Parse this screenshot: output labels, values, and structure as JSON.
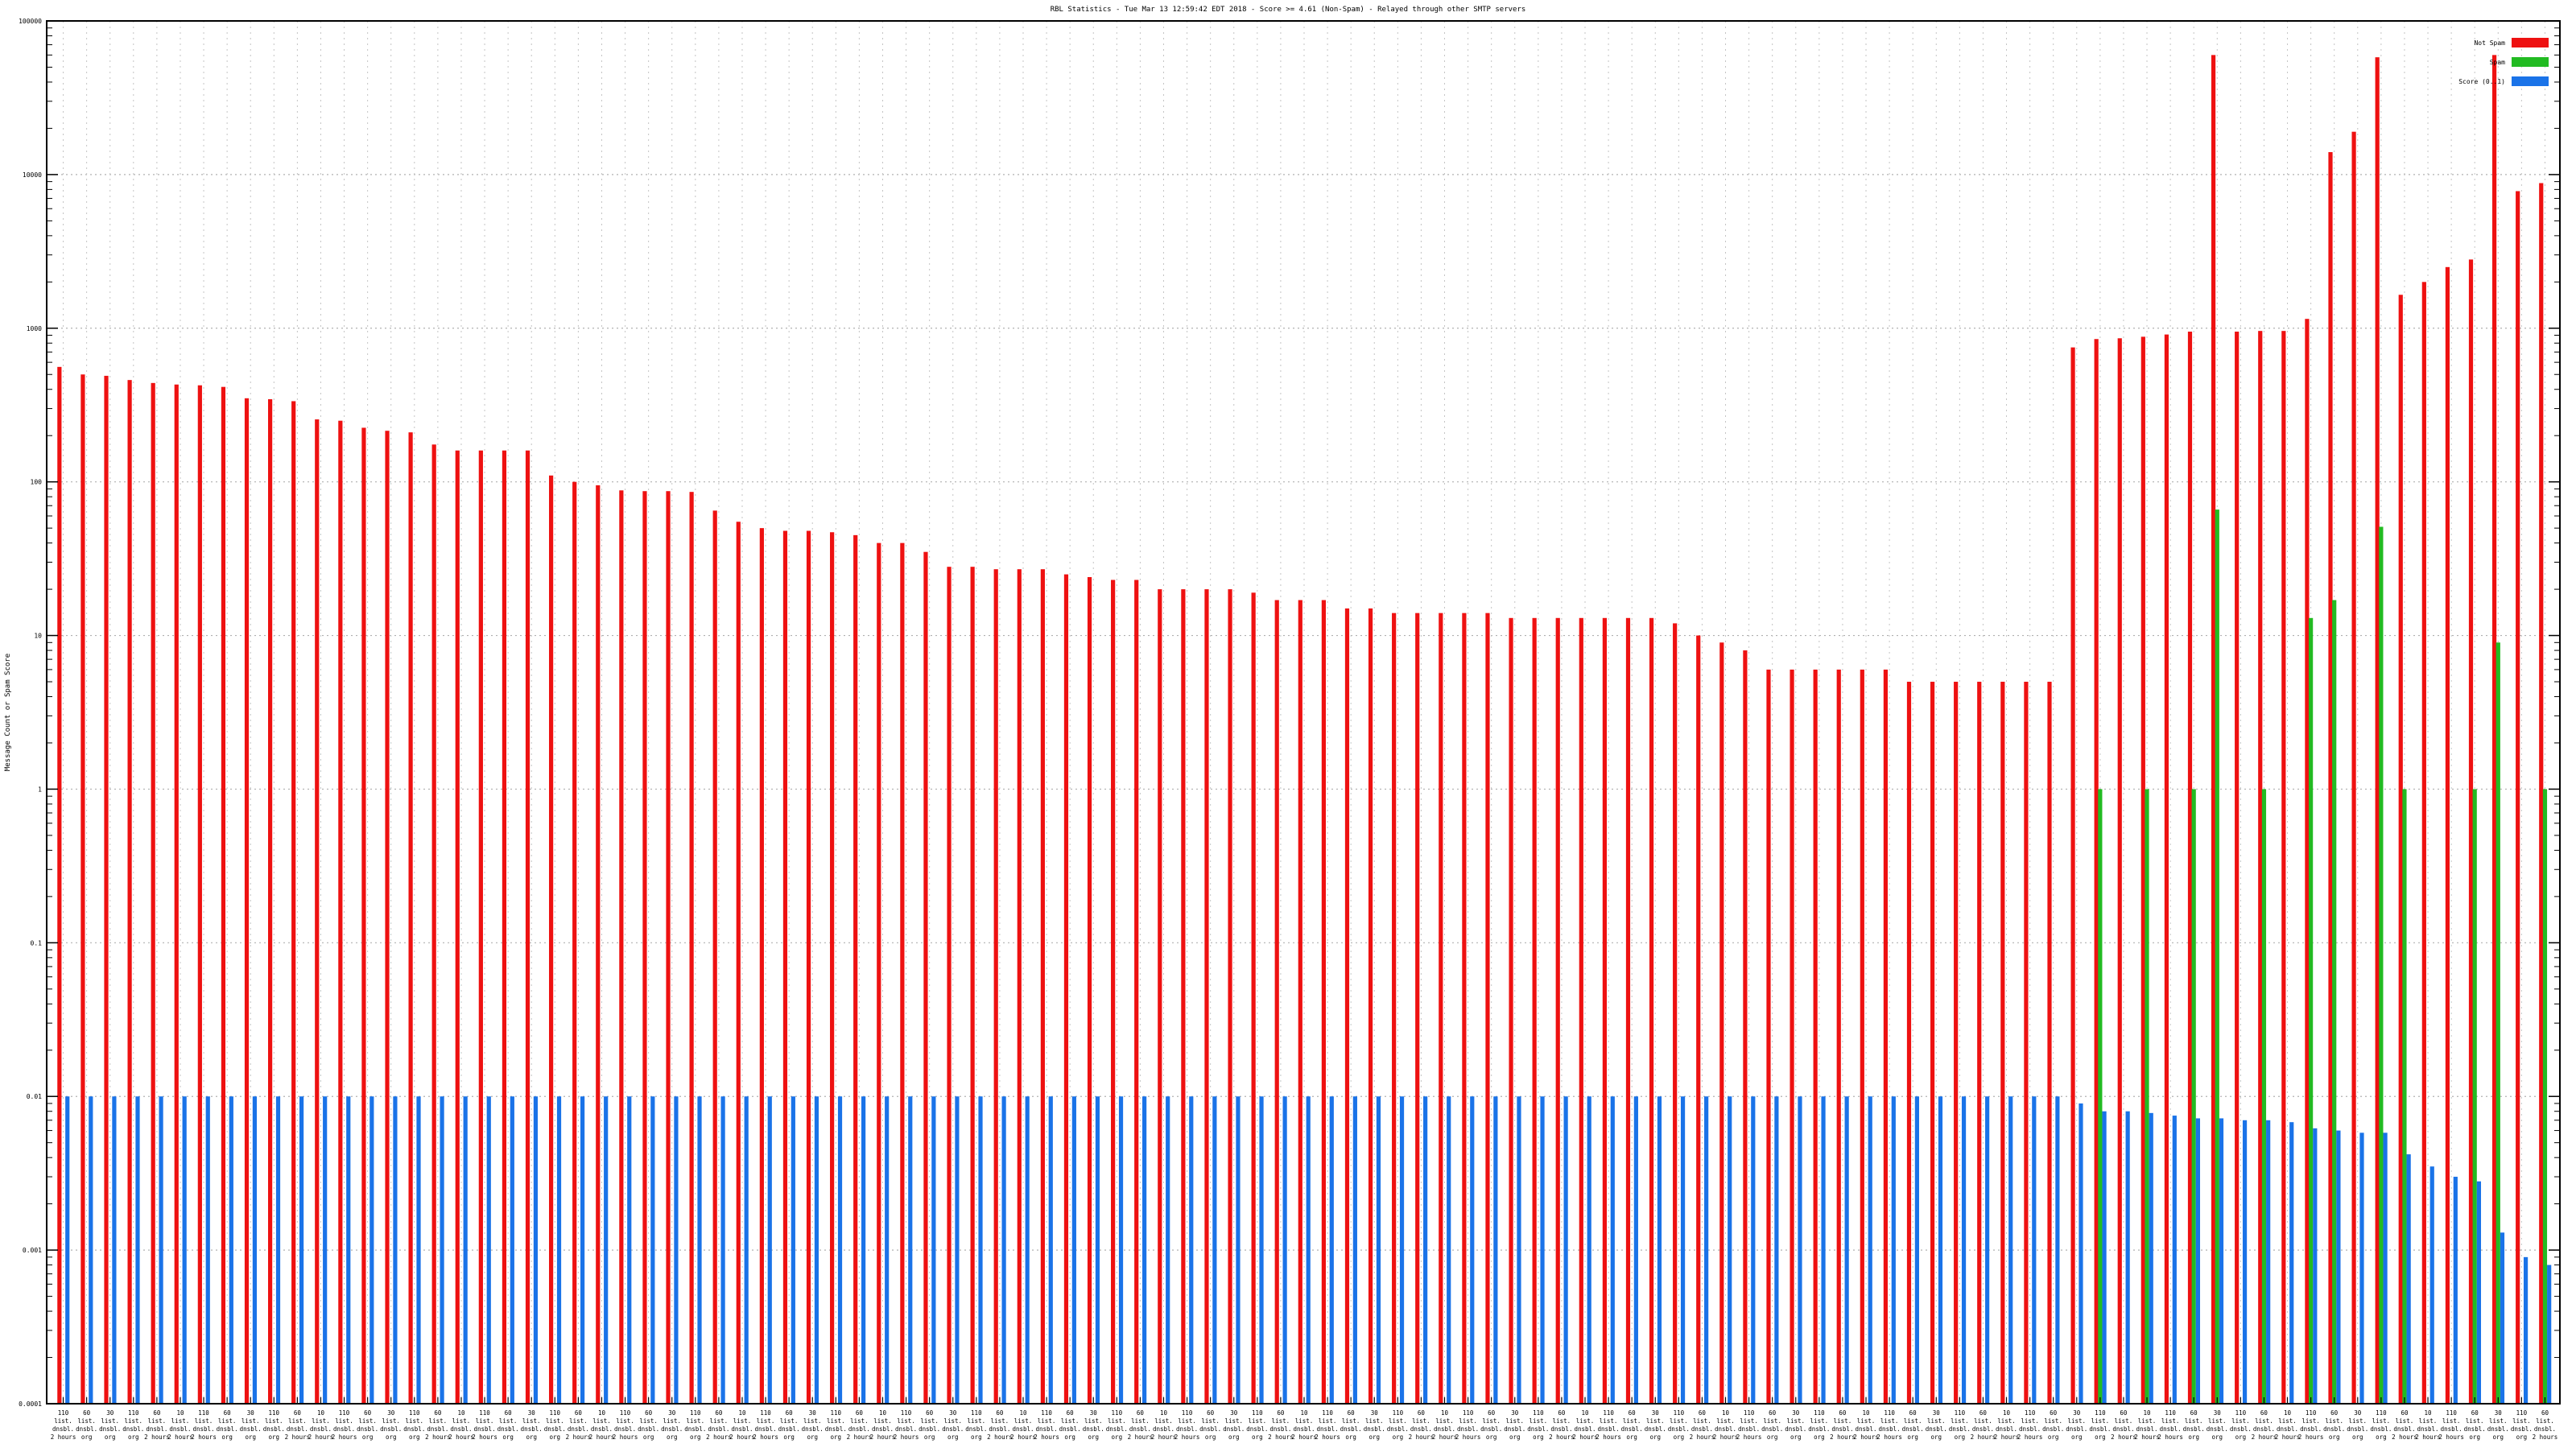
{
  "chart_data": {
    "type": "bar",
    "title": "RBL Statistics - Tue Mar 13 12:59:42 EDT 2018 - Score >= 4.61 (Non-Spam) - Relayed through other SMTP servers",
    "xlabel": "",
    "ylabel": "Message Count or Spam Score",
    "y_scale": "log",
    "ylim": [
      0.0001,
      100000
    ],
    "y_ticks": [
      "0.0001",
      "0.001",
      "0.01",
      "0.1",
      "1",
      "10",
      "100",
      "1000",
      "10000",
      "100000"
    ],
    "grid": true,
    "legend_position": "top-right",
    "category_note": "Each category is an RBL/DNSBL zone; its rotated multi-line label is illegible at the screenshot resolution.",
    "category_label_lines": [
      [
        "110",
        "list.",
        "dnsbl.",
        "2 hours"
      ],
      [
        "60",
        "list.",
        "dnsbl.",
        "org"
      ],
      [
        "30",
        "list.",
        "dnsbl.",
        "org"
      ],
      [
        "110",
        "list.",
        "dnsbl.",
        "org"
      ],
      [
        "60",
        "list.",
        "dnsbl.",
        "2 hours"
      ],
      [
        "10",
        "list.",
        "dnsbl.",
        "2 hours"
      ]
    ],
    "series": [
      {
        "name": "Not Spam",
        "color": "#ee1111",
        "values": [
          560,
          500,
          490,
          460,
          440,
          430,
          425,
          415,
          350,
          345,
          335,
          255,
          250,
          225,
          215,
          210,
          175,
          160,
          160,
          160,
          160,
          110,
          100,
          95,
          88,
          87,
          87,
          86,
          65,
          55,
          50,
          48,
          48,
          47,
          45,
          40,
          40,
          35,
          28,
          28,
          27,
          27,
          27,
          25,
          24,
          23,
          23,
          20,
          20,
          20,
          20,
          19,
          17,
          17,
          17,
          15,
          15,
          14,
          14,
          14,
          14,
          14,
          13,
          13,
          13,
          13,
          13,
          13,
          13,
          12,
          10,
          9,
          8,
          6,
          6,
          6,
          6,
          6,
          6,
          5,
          5,
          5,
          5,
          5,
          5,
          5,
          750,
          850,
          860,
          880,
          910,
          950,
          60000,
          950,
          960,
          960,
          1150,
          14000,
          19000,
          58000,
          1650,
          2000,
          2500,
          2800,
          60000,
          7800,
          8800
        ]
      },
      {
        "name": "Spam",
        "color": "#22bb22",
        "values": [
          0,
          0,
          0,
          0,
          0,
          0,
          0,
          0,
          0,
          0,
          0,
          0,
          0,
          0,
          0,
          0,
          0,
          0,
          0,
          0,
          0,
          0,
          0,
          0,
          0,
          0,
          0,
          0,
          0,
          0,
          0,
          0,
          0,
          0,
          0,
          0,
          0,
          0,
          0,
          0,
          0,
          0,
          0,
          0,
          0,
          0,
          0,
          0,
          0,
          0,
          0,
          0,
          0,
          0,
          0,
          0,
          0,
          0,
          0,
          0,
          0,
          0,
          0,
          0,
          0,
          0,
          0,
          0,
          0,
          0,
          0,
          0,
          0,
          0,
          0,
          0,
          0,
          0,
          0,
          0,
          0,
          0,
          0,
          0,
          0,
          0,
          0,
          1,
          0,
          1,
          0,
          1,
          66,
          0,
          1,
          0,
          13,
          17,
          0,
          51,
          1,
          0,
          0,
          1,
          9,
          0,
          1
        ]
      },
      {
        "name": "Score (0..1)",
        "color": "#1a73e8",
        "values": [
          0.01,
          0.01,
          0.01,
          0.01,
          0.01,
          0.01,
          0.01,
          0.01,
          0.01,
          0.01,
          0.01,
          0.01,
          0.01,
          0.01,
          0.01,
          0.01,
          0.01,
          0.01,
          0.01,
          0.01,
          0.01,
          0.01,
          0.01,
          0.01,
          0.01,
          0.01,
          0.01,
          0.01,
          0.01,
          0.01,
          0.01,
          0.01,
          0.01,
          0.01,
          0.01,
          0.01,
          0.01,
          0.01,
          0.01,
          0.01,
          0.01,
          0.01,
          0.01,
          0.01,
          0.01,
          0.01,
          0.01,
          0.01,
          0.01,
          0.01,
          0.01,
          0.01,
          0.01,
          0.01,
          0.01,
          0.01,
          0.01,
          0.01,
          0.01,
          0.01,
          0.01,
          0.01,
          0.01,
          0.01,
          0.01,
          0.01,
          0.01,
          0.01,
          0.01,
          0.01,
          0.01,
          0.01,
          0.01,
          0.01,
          0.01,
          0.01,
          0.01,
          0.01,
          0.01,
          0.01,
          0.01,
          0.01,
          0.01,
          0.01,
          0.01,
          0.01,
          0.009,
          0.008,
          0.008,
          0.0078,
          0.0075,
          0.0072,
          0.0072,
          0.007,
          0.007,
          0.0068,
          0.0062,
          0.006,
          0.0058,
          0.0058,
          0.0042,
          0.0035,
          0.003,
          0.0028,
          0.0013,
          0.0009,
          0.0008
        ]
      }
    ]
  }
}
